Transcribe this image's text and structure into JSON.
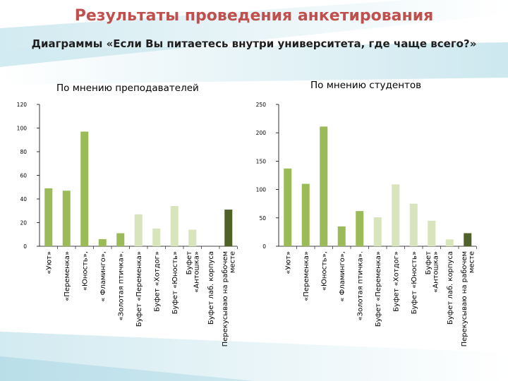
{
  "page": {
    "title": "Результаты проведения анкетирования",
    "subtitle": "Диаграммы «Если Вы питаетесь внутри университета, где чаще всего?»"
  },
  "colors": {
    "title": "#c0504d",
    "bar_green": "#9bbb59",
    "bar_light": "#d7e4bc",
    "bar_dark": "#4f6228",
    "axis": "#000000",
    "decor_teal": "#4bacc6"
  },
  "chart_data": [
    {
      "type": "bar",
      "title": "По мнению преподавателей",
      "xlabel": "",
      "ylabel": "",
      "ylim": [
        0,
        120
      ],
      "yticks": [
        0,
        20,
        40,
        60,
        80,
        100,
        120
      ],
      "grid": false,
      "categories": [
        "«Уют»",
        "«Переменка»",
        "«Юность»,",
        "« Фламинго»,",
        "«Золотая птичка».",
        "Буфет «Переменка»",
        "Буфет «Хотдог»",
        "Буфет «Юность»",
        "Буфет «Антошка»",
        "Буфет лаб. корпуса",
        "Перекусываю на рабочем месте"
      ],
      "tick_lines": [
        [
          "«Уют»"
        ],
        [
          "«Переменка»"
        ],
        [
          "«Юность»,"
        ],
        [
          "« Фламинго»,"
        ],
        [
          "«Золотая птичка»."
        ],
        [
          "Буфет «Переменка»"
        ],
        [
          "Буфет «Хотдог»"
        ],
        [
          "Буфет «Юность»"
        ],
        [
          "Буфет",
          "«Антошка»"
        ],
        [
          "Буфет лаб. корпуса"
        ],
        [
          "Перекусываю на рабочем",
          "месте"
        ]
      ],
      "values": [
        49,
        47,
        97,
        6,
        11,
        27,
        15,
        34,
        14,
        0,
        31
      ],
      "bar_colors": [
        "#9bbb59",
        "#9bbb59",
        "#9bbb59",
        "#9bbb59",
        "#9bbb59",
        "#d7e4bc",
        "#d7e4bc",
        "#d7e4bc",
        "#d7e4bc",
        "#d7e4bc",
        "#4f6228"
      ]
    },
    {
      "type": "bar",
      "title": "По мнению студентов",
      "xlabel": "",
      "ylabel": "",
      "ylim": [
        0,
        250
      ],
      "yticks": [
        0,
        50,
        100,
        150,
        200,
        250
      ],
      "grid": false,
      "categories": [
        "«Уют»",
        "«Переменка»",
        "«Юность»,",
        "« Фламинго»,",
        "«Золотая птичка».",
        "Буфет «Переменка»",
        "Буфет «Хотдог»",
        "Буфет «Юность»",
        "Буфет «Антошка»",
        "Буфет лаб. корпуса",
        "Перекусываю на рабочем месте"
      ],
      "tick_lines": [
        [
          "«Уют»"
        ],
        [
          "«Переменка»"
        ],
        [
          "«Юность»,"
        ],
        [
          "« Фламинго»,"
        ],
        [
          "«Золотая птичка»."
        ],
        [
          "Буфет «Переменка»"
        ],
        [
          "Буфет «Хотдог»"
        ],
        [
          "Буфет «Юность»"
        ],
        [
          "Буфет",
          "«Антошка»"
        ],
        [
          "Буфет лаб. корпуса"
        ],
        [
          "Перекусываю на рабочем",
          "месте"
        ]
      ],
      "values": [
        137,
        110,
        211,
        35,
        62,
        51,
        109,
        75,
        45,
        12,
        23
      ],
      "bar_colors": [
        "#9bbb59",
        "#9bbb59",
        "#9bbb59",
        "#9bbb59",
        "#9bbb59",
        "#d7e4bc",
        "#d7e4bc",
        "#d7e4bc",
        "#d7e4bc",
        "#d7e4bc",
        "#4f6228"
      ]
    }
  ]
}
